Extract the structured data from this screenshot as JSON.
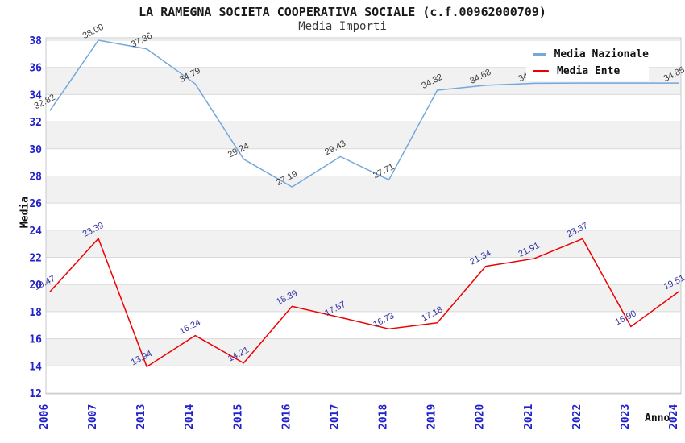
{
  "chart_data": {
    "type": "line",
    "title": "LA RAMEGNA SOCIETA COOPERATIVA SOCIALE (c.f.00962000709)",
    "subtitle": "Media Importi",
    "xlabel": "Anno",
    "ylabel": "Media",
    "ylim": [
      12,
      38
    ],
    "ytick_step": 2,
    "grid": "horizontal",
    "legend_position": "top-right",
    "band_color": "#F1F1F1",
    "gridline_color": "#DADADA",
    "border_color": "#C8C8C8",
    "axis_tick_color": "#2222CC",
    "categories": [
      "2006",
      "2007",
      "2013",
      "2014",
      "2015",
      "2016",
      "2017",
      "2018",
      "2019",
      "2020",
      "2021",
      "2022",
      "2023",
      "2024"
    ],
    "series": [
      {
        "name": "Media Nazionale",
        "color": "#74A7DC",
        "label_color": "#3C3C3C",
        "values": [
          32.82,
          38.0,
          37.36,
          34.79,
          29.24,
          27.19,
          29.43,
          27.71,
          34.32,
          34.68,
          34.83,
          34.85,
          34.85,
          34.85
        ],
        "labels": [
          "32.82",
          "38.00",
          "37.36",
          "34.79",
          "29.24",
          "27.19",
          "29.43",
          "27.71",
          "34.32",
          "34.68",
          "34.83",
          null,
          null,
          "34.85"
        ]
      },
      {
        "name": "Media Ente",
        "color": "#EE0000",
        "label_color": "#3333A2",
        "values": [
          19.47,
          23.39,
          13.94,
          16.24,
          14.21,
          18.39,
          17.57,
          16.73,
          17.18,
          21.34,
          21.91,
          23.37,
          16.9,
          19.51
        ],
        "labels": [
          "19.47",
          "23.39",
          "13.94",
          "16.24",
          "14.21",
          "18.39",
          "17.57",
          "16.73",
          "17.18",
          "21.34",
          "21.91",
          "23.37",
          "16.90",
          "19.51"
        ]
      }
    ]
  }
}
